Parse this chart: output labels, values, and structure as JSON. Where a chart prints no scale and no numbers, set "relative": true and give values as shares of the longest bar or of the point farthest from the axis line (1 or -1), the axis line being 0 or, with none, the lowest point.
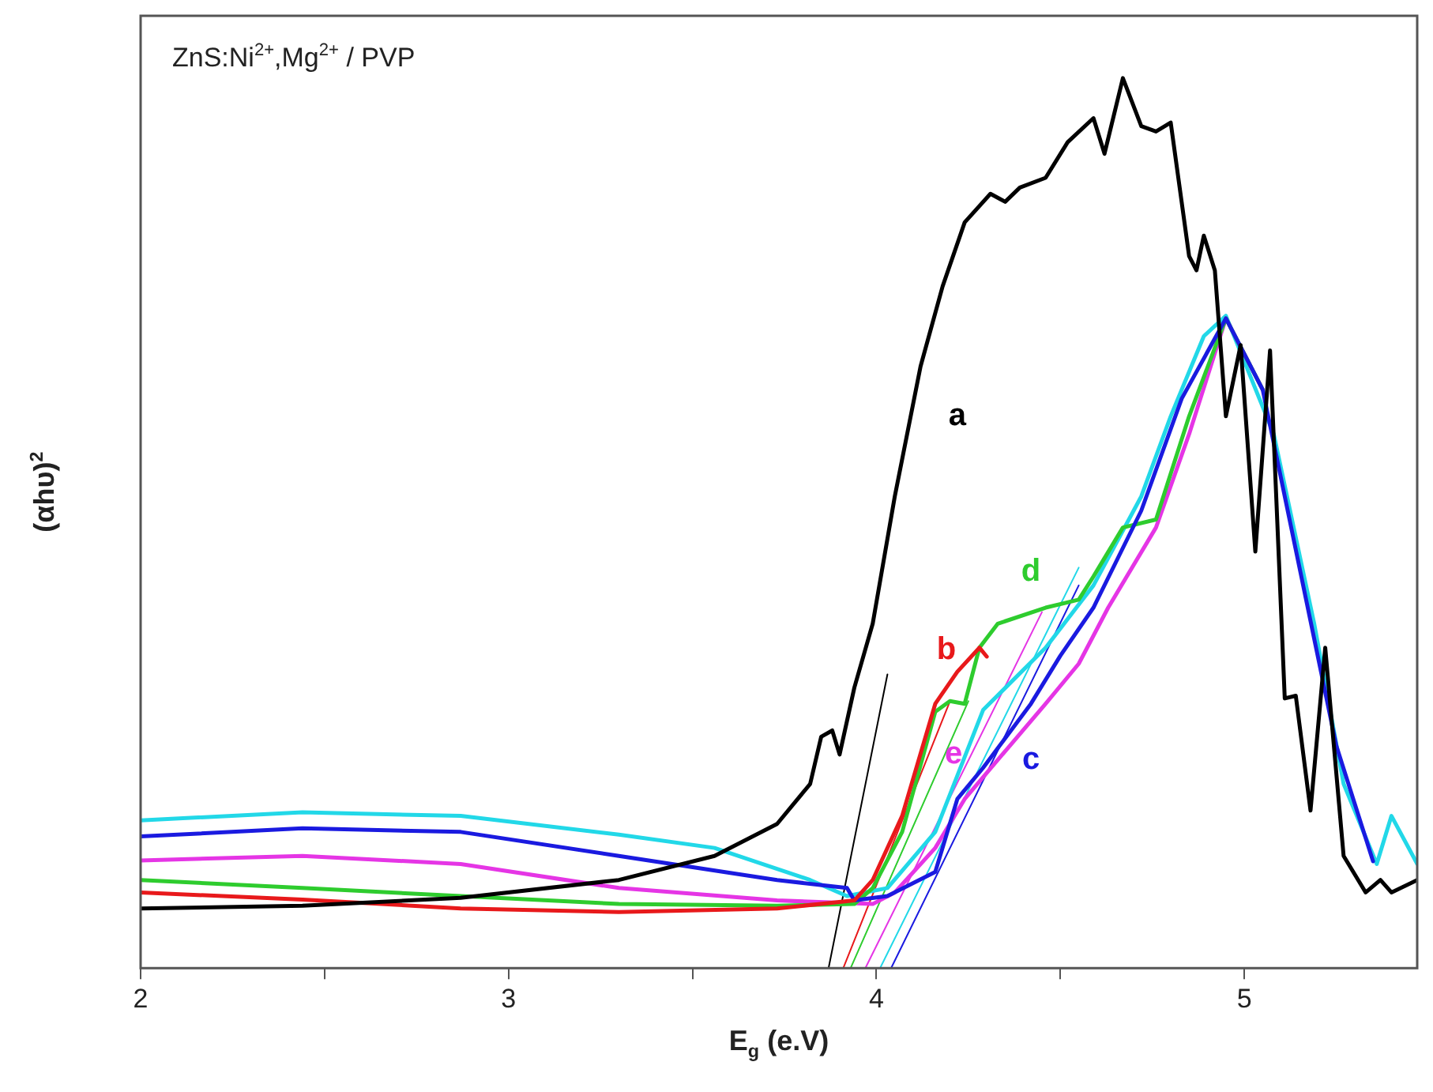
{
  "chart_data": {
    "type": "line",
    "title": "ZnS:Ni$^{2+}$,Mg$^{2+}$ / PVP",
    "xlabel": "E$_{g}$ (e.V)",
    "ylabel": "(αhυ)$^{2}$",
    "relative": true,
    "xlim": [
      2,
      5.47
    ],
    "xticks": [
      2,
      {
        "value": 2.5,
        "label": null
      },
      3,
      {
        "value": 3.5,
        "label": null
      },
      4,
      {
        "value": 4.5,
        "label": null
      },
      5
    ],
    "grid": false,
    "legend": false,
    "marker": "none",
    "line_style": "solid",
    "series": [
      {
        "name": "a",
        "color": "#000000",
        "x": [
          2,
          2.44,
          2.87,
          3.3,
          3.56,
          3.73,
          3.82,
          3.85,
          3.88,
          3.9,
          3.94,
          3.99,
          4.05,
          4.12,
          4.18,
          4.24,
          4.31,
          4.35,
          4.39,
          4.46,
          4.52,
          4.59,
          4.62,
          4.67,
          4.72,
          4.76,
          4.8,
          4.85,
          4.87,
          4.89,
          4.92,
          4.95,
          4.99,
          5.03,
          5.07,
          5.11,
          5.14,
          5.18,
          5.22,
          5.27,
          5.33,
          5.37,
          5.4,
          5.47
        ],
        "values": [
          0.067,
          0.07,
          0.079,
          0.099,
          0.126,
          0.162,
          0.207,
          0.26,
          0.267,
          0.24,
          0.315,
          0.387,
          0.53,
          0.676,
          0.766,
          0.838,
          0.87,
          0.861,
          0.877,
          0.888,
          0.928,
          0.955,
          0.915,
          1,
          0.946,
          0.94,
          0.95,
          0.8,
          0.784,
          0.823,
          0.784,
          0.62,
          0.7,
          0.468,
          0.694,
          0.303,
          0.306,
          0.177,
          0.36,
          0.126,
          0.085,
          0.099,
          0.085,
          0.099
        ]
      },
      {
        "name": "b",
        "color": "#e8191b",
        "x": [
          2,
          2.44,
          2.87,
          3.3,
          3.73,
          3.94,
          3.99,
          4.07,
          4.16,
          4.22,
          4.28,
          4.3
        ],
        "values": [
          0.085,
          0.077,
          0.067,
          0.063,
          0.067,
          0.076,
          0.099,
          0.171,
          0.297,
          0.333,
          0.36,
          0.35
        ]
      },
      {
        "name": "c",
        "color": "#1a1ae0",
        "x": [
          2,
          2.44,
          2.87,
          3.3,
          3.73,
          3.92,
          3.94,
          4.03,
          4.16,
          4.22,
          4.29,
          4.42,
          4.5,
          4.59,
          4.72,
          4.83,
          4.95,
          5.05,
          5.15,
          5.25,
          5.35
        ],
        "values": [
          0.148,
          0.157,
          0.153,
          0.126,
          0.099,
          0.09,
          0.076,
          0.081,
          0.108,
          0.19,
          0.225,
          0.297,
          0.351,
          0.405,
          0.514,
          0.64,
          0.73,
          0.65,
          0.45,
          0.25,
          0.12
        ]
      },
      {
        "name": "d",
        "color": "#2ecc2e",
        "x": [
          2,
          2.44,
          2.87,
          3.3,
          3.73,
          3.94,
          3.99,
          4.07,
          4.16,
          4.2,
          4.24,
          4.28,
          4.33,
          4.46,
          4.55,
          4.59,
          4.67,
          4.76,
          4.85,
          4.95,
          5.05
        ],
        "values": [
          0.099,
          0.09,
          0.081,
          0.072,
          0.07,
          0.072,
          0.09,
          0.153,
          0.288,
          0.3,
          0.297,
          0.36,
          0.387,
          0.405,
          0.414,
          0.44,
          0.495,
          0.504,
          0.62,
          0.73,
          0.65
        ]
      },
      {
        "name": "e",
        "color": "#e535e5",
        "x": [
          2,
          2.44,
          2.87,
          3.3,
          3.73,
          3.99,
          4.05,
          4.16,
          4.24,
          4.33,
          4.46,
          4.55,
          4.63,
          4.76,
          4.85,
          4.95,
          5.05
        ],
        "values": [
          0.121,
          0.126,
          0.117,
          0.09,
          0.076,
          0.072,
          0.085,
          0.135,
          0.19,
          0.234,
          0.297,
          0.342,
          0.405,
          0.495,
          0.6,
          0.73,
          0.65
        ]
      },
      {
        "color": "#22d8e8",
        "x": [
          2,
          2.44,
          2.87,
          3.3,
          3.56,
          3.82,
          3.92,
          4.03,
          4.16,
          4.29,
          4.46,
          4.59,
          4.72,
          4.8,
          4.89,
          4.95,
          5.08,
          5.19,
          5.27,
          5.36,
          5.4,
          5.47
        ],
        "values": [
          0.166,
          0.175,
          0.171,
          0.15,
          0.135,
          0.099,
          0.081,
          0.09,
          0.153,
          0.29,
          0.36,
          0.43,
          0.53,
          0.62,
          0.71,
          0.733,
          0.6,
          0.387,
          0.207,
          0.117,
          0.171,
          0.117
        ]
      },
      {
        "color": "#000000",
        "x": [
          3.87,
          4.03
        ],
        "values": [
          0,
          0.33
        ]
      },
      {
        "color": "#e8191b",
        "x": [
          3.91,
          4.2
        ],
        "values": [
          0,
          0.3
        ]
      },
      {
        "color": "#2ecc2e",
        "x": [
          3.93,
          4.25
        ],
        "values": [
          0,
          0.3
        ]
      },
      {
        "color": "#e535e5",
        "x": [
          3.97,
          4.45
        ],
        "values": [
          0,
          0.4
        ]
      },
      {
        "color": "#22d8e8",
        "x": [
          4.01,
          4.55
        ],
        "values": [
          0,
          0.45
        ]
      },
      {
        "color": "#1a1ae0",
        "x": [
          4.04,
          4.55
        ],
        "values": [
          0,
          0.43
        ]
      }
    ]
  }
}
